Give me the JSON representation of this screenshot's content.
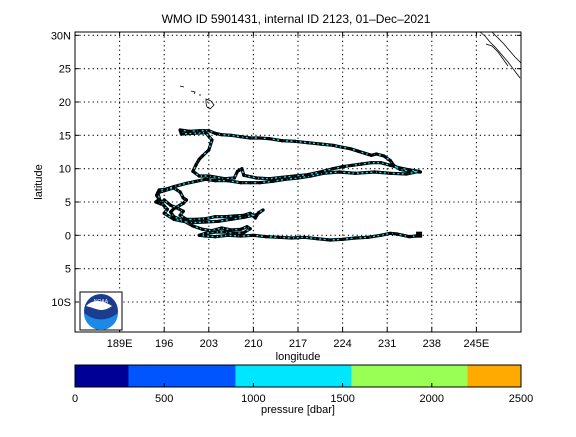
{
  "chart_data": {
    "type": "scatter",
    "title": "WMO ID 5901431, internal ID 2123, 01–Dec–2021",
    "xlabel": "longitude",
    "ylabel": "latitude",
    "xlim": [
      182,
      252
    ],
    "ylim": [
      -14.5,
      30.5
    ],
    "grid": true,
    "x_ticks": [
      {
        "value": 189,
        "label": "189E"
      },
      {
        "value": 196,
        "label": "196"
      },
      {
        "value": 203,
        "label": "203"
      },
      {
        "value": 210,
        "label": "210"
      },
      {
        "value": 217,
        "label": "217"
      },
      {
        "value": 224,
        "label": "224"
      },
      {
        "value": 231,
        "label": "231"
      },
      {
        "value": 238,
        "label": "238"
      },
      {
        "value": 245,
        "label": "245E"
      }
    ],
    "y_ticks": [
      {
        "value": 30,
        "label": "30N"
      },
      {
        "value": 25,
        "label": "25"
      },
      {
        "value": 20,
        "label": "20"
      },
      {
        "value": 15,
        "label": "15"
      },
      {
        "value": 10,
        "label": "10"
      },
      {
        "value": 5,
        "label": "5"
      },
      {
        "value": 0,
        "label": "0"
      },
      {
        "value": -5,
        "label": "5"
      },
      {
        "value": -10,
        "label": "10S"
      }
    ],
    "track": [
      [
        236.2,
        9.5
      ],
      [
        234.5,
        9.6
      ],
      [
        233.0,
        9.9
      ],
      [
        232.0,
        10.5
      ],
      [
        231.5,
        11.2
      ],
      [
        230.5,
        11.9
      ],
      [
        229.3,
        12.2
      ],
      [
        228.5,
        12.0
      ],
      [
        227.5,
        12.3
      ],
      [
        226.5,
        12.6
      ],
      [
        225.2,
        13.0
      ],
      [
        224.0,
        13.2
      ],
      [
        222.5,
        13.5
      ],
      [
        220.5,
        13.7
      ],
      [
        218.5,
        13.9
      ],
      [
        216.5,
        14.1
      ],
      [
        214.5,
        14.2
      ],
      [
        212.5,
        14.5
      ],
      [
        211.0,
        14.6
      ],
      [
        209.5,
        14.6
      ],
      [
        208.0,
        14.8
      ],
      [
        206.5,
        15.0
      ],
      [
        205.0,
        15.1
      ],
      [
        204.0,
        15.3
      ],
      [
        203.0,
        15.7
      ],
      [
        201.5,
        15.7
      ],
      [
        200.0,
        15.6
      ],
      [
        198.5,
        15.8
      ],
      [
        198.7,
        15.2
      ],
      [
        200.5,
        15.3
      ],
      [
        202.5,
        15.4
      ],
      [
        203.5,
        14.3
      ],
      [
        203.0,
        12.8
      ],
      [
        202.0,
        11.9
      ],
      [
        201.5,
        11.4
      ],
      [
        201.0,
        10.6
      ],
      [
        200.5,
        9.6
      ],
      [
        201.5,
        8.9
      ],
      [
        203.0,
        8.9
      ],
      [
        205.5,
        8.5
      ],
      [
        207.0,
        8.6
      ],
      [
        207.5,
        9.6
      ],
      [
        208.2,
        10.0
      ],
      [
        208.5,
        9.0
      ],
      [
        210.5,
        8.6
      ],
      [
        212.5,
        8.5
      ],
      [
        214.5,
        8.7
      ],
      [
        216.5,
        8.9
      ],
      [
        218.5,
        9.1
      ],
      [
        220.5,
        9.5
      ],
      [
        222.5,
        10.0
      ],
      [
        224.0,
        10.3
      ],
      [
        225.5,
        10.5
      ],
      [
        227.0,
        10.7
      ],
      [
        228.5,
        10.9
      ],
      [
        230.0,
        10.9
      ],
      [
        231.5,
        10.5
      ],
      [
        233.0,
        10.1
      ],
      [
        234.5,
        9.8
      ],
      [
        236.0,
        9.6
      ],
      [
        234.0,
        9.2
      ],
      [
        231.5,
        9.3
      ],
      [
        229.0,
        9.5
      ],
      [
        226.0,
        9.3
      ],
      [
        223.5,
        9.5
      ],
      [
        221.0,
        9.3
      ],
      [
        219.0,
        8.9
      ],
      [
        217.0,
        8.6
      ],
      [
        215.0,
        8.4
      ],
      [
        213.0,
        8.1
      ],
      [
        211.0,
        7.9
      ],
      [
        209.5,
        7.9
      ],
      [
        208.0,
        7.9
      ],
      [
        206.0,
        8.2
      ],
      [
        204.0,
        8.2
      ],
      [
        202.5,
        8.4
      ],
      [
        201.0,
        8.1
      ],
      [
        199.5,
        7.8
      ],
      [
        197.5,
        7.3
      ],
      [
        196.2,
        6.9
      ],
      [
        195.2,
        6.8
      ],
      [
        194.8,
        6.0
      ],
      [
        195.2,
        5.4
      ],
      [
        194.7,
        5.0
      ],
      [
        195.5,
        4.7
      ],
      [
        196.0,
        5.3
      ],
      [
        197.0,
        4.5
      ],
      [
        198.0,
        4.1
      ],
      [
        199.0,
        3.6
      ],
      [
        198.5,
        3.0
      ],
      [
        199.5,
        2.4
      ],
      [
        201.0,
        2.4
      ],
      [
        202.5,
        2.5
      ],
      [
        204.0,
        2.8
      ],
      [
        205.5,
        2.8
      ],
      [
        207.0,
        2.9
      ],
      [
        208.5,
        3.0
      ],
      [
        209.5,
        3.3
      ],
      [
        210.3,
        2.6
      ],
      [
        210.8,
        3.4
      ],
      [
        211.5,
        3.8
      ],
      [
        210.5,
        3.1
      ],
      [
        208.5,
        2.7
      ],
      [
        206.5,
        2.4
      ],
      [
        204.5,
        2.1
      ],
      [
        202.5,
        2.0
      ],
      [
        200.0,
        1.9
      ],
      [
        197.5,
        2.4
      ],
      [
        196.0,
        3.3
      ],
      [
        196.5,
        3.9
      ],
      [
        196.0,
        4.4
      ],
      [
        195.3,
        5.3
      ],
      [
        195.0,
        6.4
      ],
      [
        196.0,
        6.7
      ],
      [
        197.5,
        7.1
      ],
      [
        198.5,
        6.5
      ],
      [
        199.0,
        5.6
      ],
      [
        199.5,
        5.3
      ],
      [
        199.0,
        4.8
      ],
      [
        197.5,
        4.0
      ],
      [
        197.0,
        3.5
      ],
      [
        197.5,
        2.8
      ],
      [
        199.0,
        2.2
      ],
      [
        200.5,
        1.4
      ],
      [
        202.0,
        0.9
      ],
      [
        203.5,
        0.7
      ],
      [
        205.0,
        1.1
      ],
      [
        206.5,
        0.8
      ],
      [
        208.0,
        0.9
      ],
      [
        209.0,
        1.3
      ],
      [
        209.5,
        1.0
      ],
      [
        208.5,
        0.4
      ],
      [
        207.0,
        0.3
      ],
      [
        205.5,
        0.5
      ],
      [
        204.0,
        0.5
      ],
      [
        202.5,
        0.3
      ],
      [
        201.5,
        0.0
      ],
      [
        202.5,
        -0.1
      ],
      [
        204.0,
        -0.2
      ],
      [
        206.0,
        0.0
      ],
      [
        208.0,
        -0.1
      ],
      [
        210.0,
        0.0
      ],
      [
        212.0,
        -0.2
      ],
      [
        214.0,
        -0.3
      ],
      [
        216.0,
        -0.4
      ],
      [
        218.0,
        -0.3
      ],
      [
        220.0,
        -0.5
      ],
      [
        222.0,
        -0.7
      ],
      [
        224.0,
        -0.6
      ],
      [
        226.0,
        -0.4
      ],
      [
        228.0,
        -0.3
      ],
      [
        230.0,
        0.0
      ],
      [
        231.5,
        0.3
      ],
      [
        232.5,
        0.2
      ],
      [
        233.5,
        0.0
      ],
      [
        234.5,
        -0.2
      ],
      [
        235.5,
        -0.1
      ],
      [
        236.0,
        0.1
      ]
    ],
    "launch_point": [
      236.0,
      0.1
    ],
    "colorbar": {
      "label": "pressure [dbar]",
      "ticks": [
        0,
        500,
        1000,
        1500,
        2000,
        2500
      ],
      "range": [
        0,
        2500
      ],
      "bands": [
        {
          "to": 300,
          "color": "#000096"
        },
        {
          "to": 900,
          "color": "#0055ff"
        },
        {
          "to": 1550,
          "color": "#00e6ff"
        },
        {
          "to": 2200,
          "color": "#99ff55"
        },
        {
          "to": 2500,
          "color": "#ffaa00"
        }
      ]
    },
    "profile_dot_color": "#00e6ff"
  },
  "logo": {
    "text": "NOAA"
  }
}
